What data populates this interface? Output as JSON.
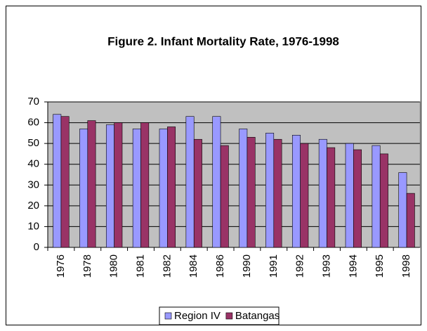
{
  "chart_data": {
    "type": "bar",
    "title": "Figure 2. Infant Mortality Rate, 1976-1998",
    "categories": [
      "1976",
      "1978",
      "1980",
      "1981",
      "1982",
      "1984",
      "1986",
      "1990",
      "1991",
      "1992",
      "1993",
      "1994",
      "1995",
      "1998"
    ],
    "series": [
      {
        "name": "Region IV",
        "color": "#9999ff",
        "values": [
          64,
          57,
          59,
          57,
          57,
          63,
          63,
          57,
          55,
          54,
          52,
          50,
          49,
          36
        ]
      },
      {
        "name": "Batangas",
        "color": "#993366",
        "values": [
          63,
          61,
          60,
          60,
          58,
          52,
          49,
          53,
          52,
          50,
          48,
          47,
          45,
          26
        ]
      }
    ],
    "ylim": [
      0,
      70
    ],
    "yticks": [
      0,
      10,
      20,
      30,
      40,
      50,
      60,
      70
    ],
    "grid": true,
    "legend": "bottom"
  }
}
